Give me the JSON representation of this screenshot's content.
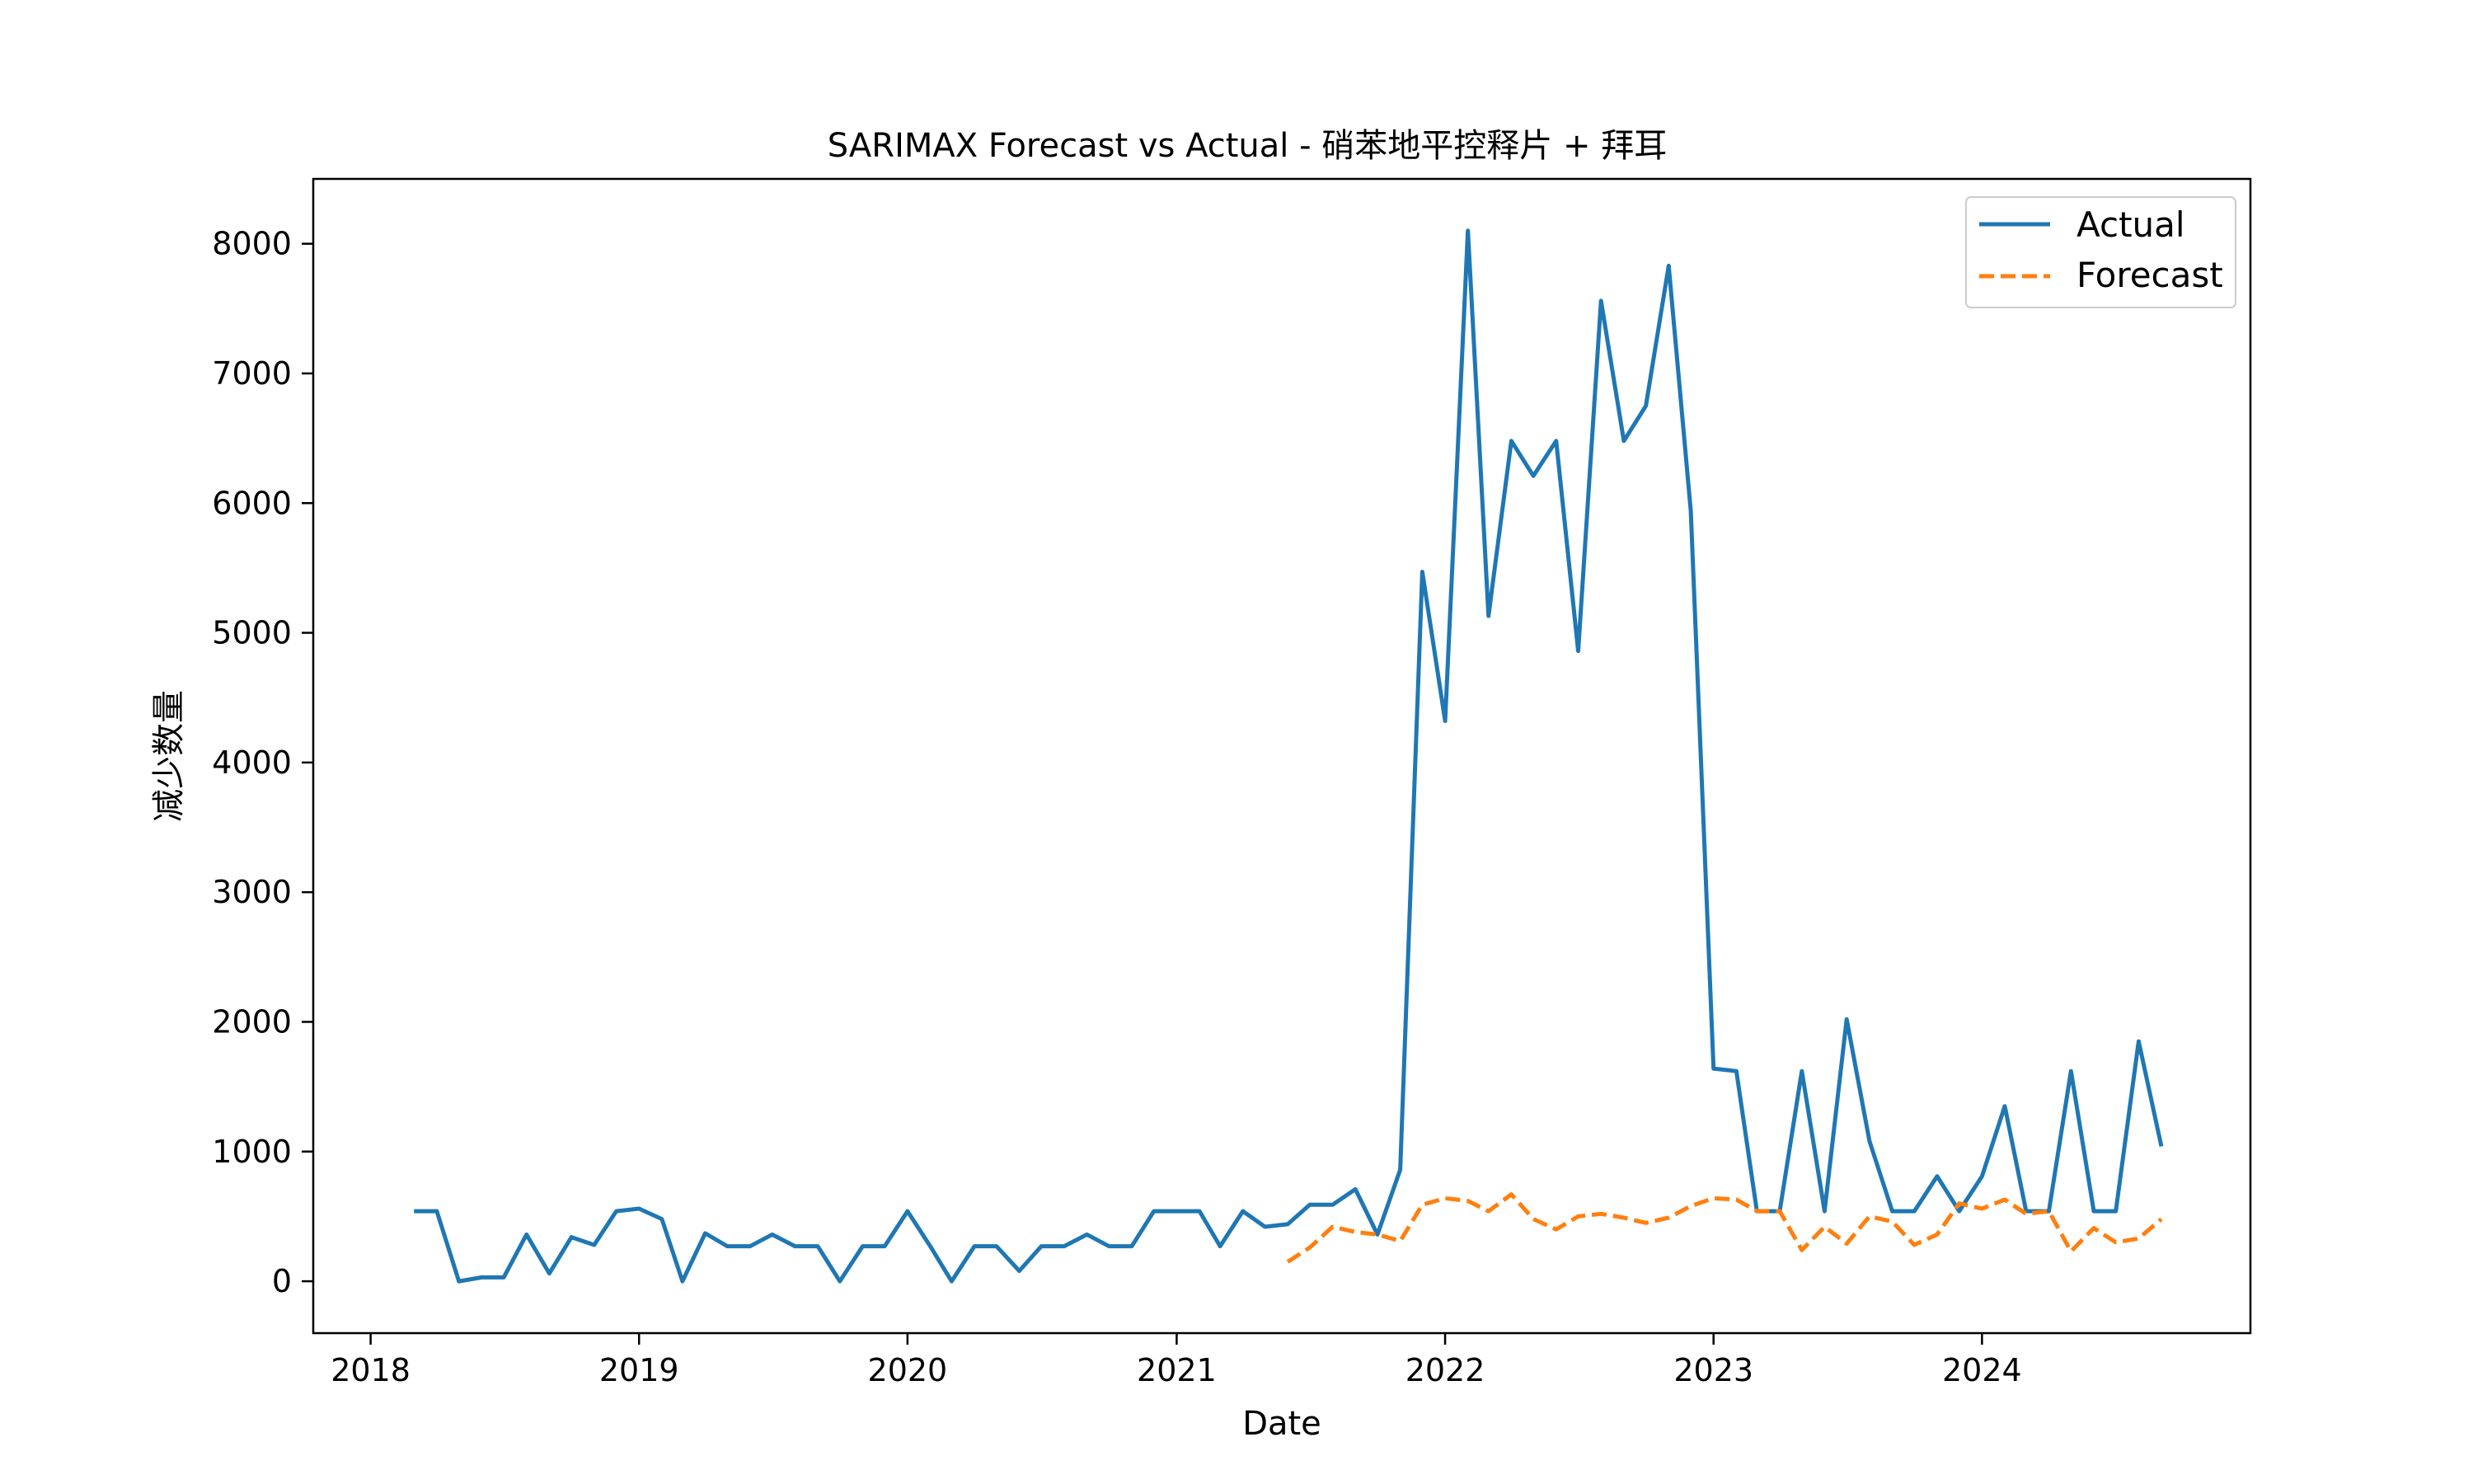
{
  "chart_data": {
    "type": "line",
    "title": "SARIMAX Forecast vs Actual - 硝苯地平控释片 + 拜耳",
    "xlabel": "Date",
    "ylabel": "减少数量",
    "xlim": [
      "2017-10-15",
      "2024-12-31"
    ],
    "ylim": [
      -400,
      8500
    ],
    "xticks": [
      "2018",
      "2019",
      "2020",
      "2021",
      "2022",
      "2023",
      "2024"
    ],
    "yticks": [
      0,
      1000,
      2000,
      3000,
      4000,
      5000,
      6000,
      7000,
      8000
    ],
    "legend": {
      "position": "top-right",
      "entries": [
        "Actual",
        "Forecast"
      ]
    },
    "grid": false,
    "series": [
      {
        "name": "Actual",
        "color": "#1f77b4",
        "style": "solid",
        "x": [
          "2018-03-01",
          "2018-04-01",
          "2018-05-01",
          "2018-06-01",
          "2018-07-01",
          "2018-08-01",
          "2018-09-01",
          "2018-10-01",
          "2018-11-01",
          "2018-12-01",
          "2019-01-01",
          "2019-02-01",
          "2019-03-01",
          "2019-04-01",
          "2019-05-01",
          "2019-06-01",
          "2019-07-01",
          "2019-08-01",
          "2019-09-01",
          "2019-10-01",
          "2019-11-01",
          "2019-12-01",
          "2020-01-01",
          "2020-02-01",
          "2020-03-01",
          "2020-04-01",
          "2020-05-01",
          "2020-06-01",
          "2020-07-01",
          "2020-08-01",
          "2020-09-01",
          "2020-10-01",
          "2020-11-01",
          "2020-12-01",
          "2021-01-01",
          "2021-02-01",
          "2021-03-01",
          "2021-04-01",
          "2021-05-01",
          "2021-06-01",
          "2021-07-01",
          "2021-08-01",
          "2021-09-01",
          "2021-10-01",
          "2021-11-01",
          "2021-12-01",
          "2022-01-01",
          "2022-02-01",
          "2022-03-01",
          "2022-04-01",
          "2022-05-01",
          "2022-06-01",
          "2022-07-01",
          "2022-08-01",
          "2022-09-01",
          "2022-10-01",
          "2022-11-01",
          "2022-12-01",
          "2023-01-01",
          "2023-02-01",
          "2023-03-01",
          "2023-04-01",
          "2023-05-01",
          "2023-06-01",
          "2023-07-01",
          "2023-08-01",
          "2023-09-01",
          "2023-10-01",
          "2023-11-01",
          "2023-12-01",
          "2024-01-01",
          "2024-02-01",
          "2024-03-01",
          "2024-04-01",
          "2024-05-01",
          "2024-06-01",
          "2024-07-01",
          "2024-08-01",
          "2024-09-01"
        ],
        "values": [
          540,
          540,
          0,
          30,
          30,
          360,
          60,
          340,
          280,
          540,
          560,
          480,
          0,
          370,
          270,
          270,
          360,
          270,
          270,
          0,
          270,
          270,
          540,
          270,
          0,
          270,
          270,
          80,
          270,
          270,
          360,
          270,
          270,
          540,
          540,
          540,
          270,
          540,
          420,
          440,
          590,
          590,
          710,
          360,
          860,
          5470,
          4320,
          8100,
          5130,
          6480,
          6210,
          6480,
          4860,
          7560,
          6480,
          6750,
          7830,
          5940,
          1640,
          1620,
          540,
          540,
          1620,
          540,
          2020,
          1080,
          540,
          540,
          810,
          540,
          810,
          1350,
          540,
          540,
          1620,
          540,
          540,
          1850,
          1040
        ]
      },
      {
        "name": "Forecast",
        "color": "#ff7f0e",
        "style": "dashed",
        "x": [
          "2021-06-01",
          "2021-07-01",
          "2021-08-01",
          "2021-09-01",
          "2021-10-01",
          "2021-11-01",
          "2021-12-01",
          "2022-01-01",
          "2022-02-01",
          "2022-03-01",
          "2022-04-01",
          "2022-05-01",
          "2022-06-01",
          "2022-07-01",
          "2022-08-01",
          "2022-09-01",
          "2022-10-01",
          "2022-11-01",
          "2022-12-01",
          "2023-01-01",
          "2023-02-01",
          "2023-03-01",
          "2023-04-01",
          "2023-05-01",
          "2023-06-01",
          "2023-07-01",
          "2023-08-01",
          "2023-09-01",
          "2023-10-01",
          "2023-11-01",
          "2023-12-01",
          "2024-01-01",
          "2024-02-01",
          "2024-03-01",
          "2024-04-01",
          "2024-05-01",
          "2024-06-01",
          "2024-07-01",
          "2024-08-01",
          "2024-09-01"
        ],
        "values": [
          150,
          260,
          420,
          380,
          360,
          310,
          590,
          640,
          620,
          540,
          670,
          480,
          400,
          500,
          520,
          490,
          450,
          490,
          580,
          640,
          630,
          540,
          540,
          240,
          420,
          290,
          500,
          460,
          280,
          360,
          600,
          560,
          630,
          520,
          540,
          230,
          410,
          300,
          330,
          480
        ]
      }
    ]
  }
}
